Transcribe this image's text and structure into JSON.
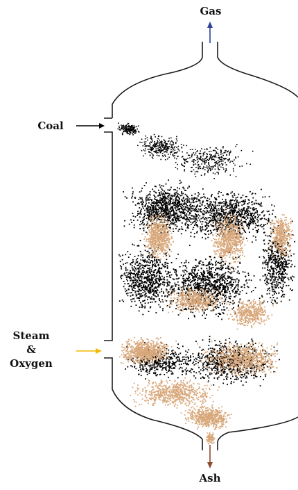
{
  "labels": {
    "gas": "Gas",
    "coal": "Coal",
    "steam": "Steam",
    "amp": "&",
    "oxygen": "Oxygen",
    "ash": "Ash"
  },
  "colors": {
    "outline": "#1a1a1a",
    "coal_particles": "#000000",
    "ash_particles": "#d8a77a",
    "gas_arrow": "#2a3f9a",
    "coal_arrow": "#000000",
    "steam_arrow": "#f5b800",
    "ash_arrow": "#8b4a2b"
  }
}
